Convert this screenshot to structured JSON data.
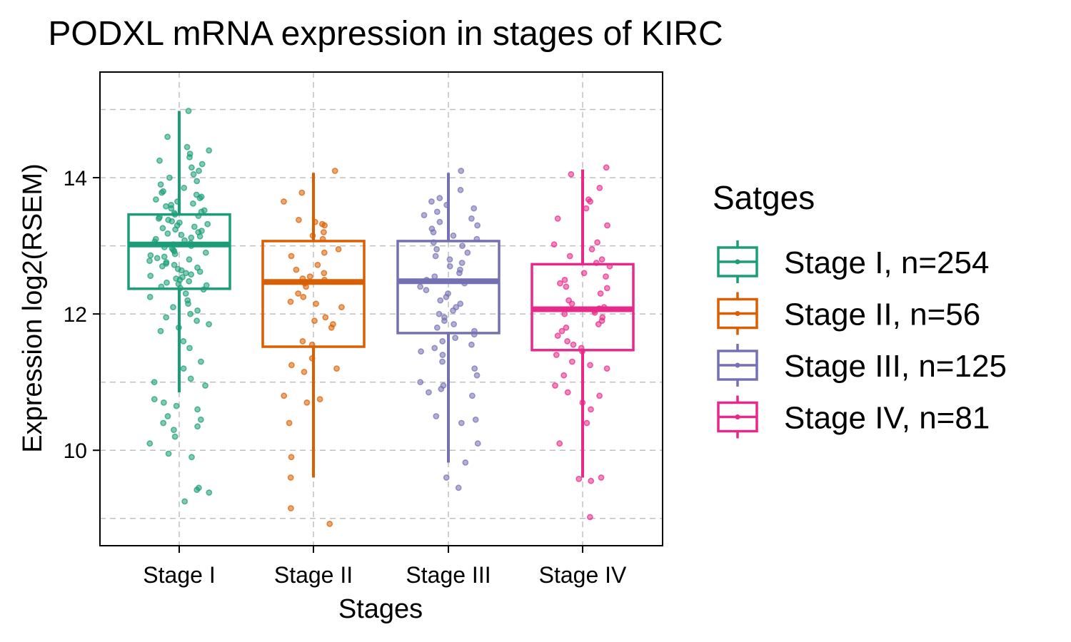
{
  "chart_data": {
    "type": "boxplot",
    "title": "PODXL mRNA expression in stages of KIRC",
    "xlabel": "Stages",
    "ylabel": "Expression log2(RSEM)",
    "ylim": [
      8.6,
      15.55
    ],
    "yticks": [
      10,
      12,
      14
    ],
    "minor_gridlines": [
      9,
      11,
      13,
      15
    ],
    "grid": true,
    "legend": {
      "title": "Satges",
      "position": "right",
      "entries": [
        "Stage I, n=254",
        "Stage II, n=56",
        "Stage III, n=125",
        "Stage IV, n=81"
      ]
    },
    "categories": [
      "Stage I",
      "Stage II",
      "Stage III",
      "Stage IV"
    ],
    "series": [
      {
        "name": "Stage I",
        "n": 254,
        "color": "#1b9e77",
        "whisker_low": 10.85,
        "q1": 12.37,
        "median": 13.02,
        "q3": 13.46,
        "whisker_high": 14.98,
        "points": [
          14.98,
          14.6,
          14.45,
          14.4,
          14.35,
          14.3,
          14.25,
          14.2,
          14.15,
          14.1,
          14.05,
          14.0,
          13.95,
          13.9,
          13.85,
          13.8,
          13.78,
          13.75,
          13.72,
          13.7,
          13.68,
          13.65,
          13.62,
          13.6,
          13.58,
          13.55,
          13.52,
          13.5,
          13.48,
          13.46,
          13.44,
          13.42,
          13.4,
          13.38,
          13.36,
          13.34,
          13.32,
          13.3,
          13.28,
          13.26,
          13.24,
          13.22,
          13.2,
          13.18,
          13.16,
          13.14,
          13.12,
          13.1,
          13.08,
          13.06,
          13.04,
          13.02,
          13.0,
          12.98,
          12.96,
          12.94,
          12.92,
          12.9,
          12.88,
          12.86,
          12.84,
          12.82,
          12.8,
          12.78,
          12.76,
          12.74,
          12.72,
          12.7,
          12.68,
          12.66,
          12.64,
          12.62,
          12.6,
          12.58,
          12.56,
          12.54,
          12.52,
          12.5,
          12.48,
          12.46,
          12.44,
          12.42,
          12.4,
          12.38,
          12.36,
          12.3,
          12.25,
          12.2,
          12.15,
          12.1,
          12.05,
          12.0,
          11.95,
          11.9,
          11.85,
          11.8,
          11.75,
          11.6,
          11.5,
          11.3,
          11.2,
          11.05,
          11.0,
          10.95,
          10.75,
          10.7,
          10.65,
          10.6,
          10.5,
          10.45,
          10.4,
          10.35,
          10.3,
          10.2,
          10.1,
          9.95,
          9.9,
          9.45,
          9.42,
          9.38,
          9.25
        ]
      },
      {
        "name": "Stage II",
        "n": 56,
        "color": "#d95f02",
        "whisker_low": 9.6,
        "q1": 11.52,
        "median": 12.47,
        "q3": 13.07,
        "whisker_high": 14.07,
        "points": [
          14.1,
          13.78,
          13.65,
          13.38,
          13.35,
          13.32,
          13.3,
          13.2,
          13.15,
          13.1,
          12.95,
          12.9,
          12.85,
          12.72,
          12.65,
          12.6,
          12.55,
          12.52,
          12.5,
          12.45,
          12.4,
          12.3,
          12.25,
          12.18,
          12.15,
          12.1,
          11.95,
          11.9,
          11.85,
          11.8,
          11.6,
          11.55,
          11.35,
          11.25,
          11.2,
          11.15,
          10.8,
          10.75,
          10.7,
          10.4,
          9.9,
          9.6,
          9.15,
          8.92
        ]
      },
      {
        "name": "Stage III",
        "n": 125,
        "color": "#7570b3",
        "whisker_low": 9.82,
        "q1": 11.72,
        "median": 12.48,
        "q3": 13.07,
        "whisker_high": 14.07,
        "points": [
          14.1,
          13.82,
          13.7,
          13.65,
          13.6,
          13.55,
          13.5,
          13.45,
          13.4,
          13.35,
          13.3,
          13.25,
          13.2,
          13.15,
          13.1,
          13.05,
          13.0,
          12.95,
          12.9,
          12.85,
          12.8,
          12.75,
          12.7,
          12.65,
          12.6,
          12.55,
          12.5,
          12.45,
          12.4,
          12.35,
          12.3,
          12.25,
          12.2,
          12.15,
          12.1,
          12.05,
          12.0,
          11.95,
          11.9,
          11.85,
          11.8,
          11.75,
          11.7,
          11.65,
          11.6,
          11.55,
          11.5,
          11.45,
          11.4,
          11.3,
          11.2,
          11.1,
          11.0,
          10.95,
          10.9,
          10.85,
          10.8,
          10.5,
          10.45,
          10.4,
          10.1,
          9.82,
          9.6,
          9.45
        ]
      },
      {
        "name": "Stage IV",
        "n": 81,
        "color": "#e7298a",
        "whisker_low": 9.6,
        "q1": 11.47,
        "median": 12.07,
        "q3": 12.73,
        "whisker_high": 14.12,
        "points": [
          14.15,
          14.05,
          13.85,
          13.68,
          13.65,
          13.55,
          13.4,
          13.3,
          13.05,
          13.02,
          12.95,
          12.85,
          12.8,
          12.75,
          12.7,
          12.6,
          12.55,
          12.5,
          12.45,
          12.4,
          12.38,
          12.3,
          12.2,
          12.15,
          12.1,
          12.08,
          12.05,
          12.02,
          12.0,
          11.95,
          11.9,
          11.85,
          11.8,
          11.75,
          11.68,
          11.6,
          11.55,
          11.5,
          11.45,
          11.4,
          11.3,
          11.25,
          11.2,
          11.1,
          10.95,
          10.85,
          10.8,
          10.7,
          10.6,
          10.4,
          10.1,
          9.6,
          9.58,
          9.55,
          9.02
        ]
      }
    ]
  }
}
